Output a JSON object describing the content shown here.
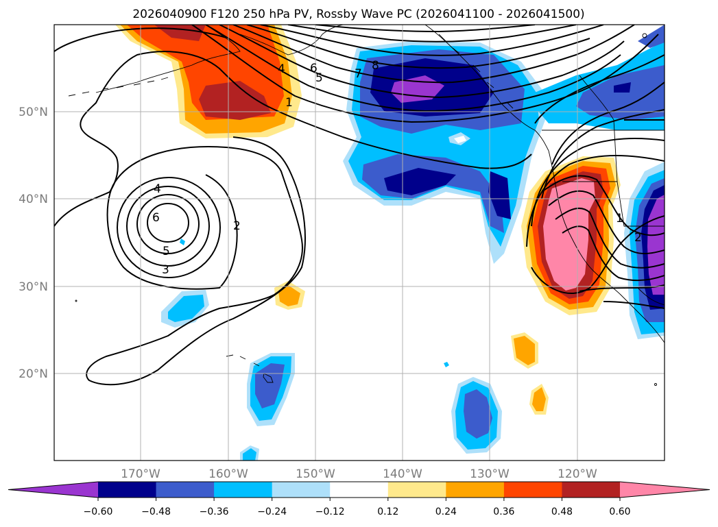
{
  "title": "2026040900 F120 250 hPa PV, Rossby Wave PC (2026041100 - 2026041500)",
  "map": {
    "lon_labels": [
      "170°W",
      "160°W",
      "150°W",
      "140°W",
      "130°W",
      "120°W"
    ],
    "lat_labels": [
      "50°N",
      "40°N",
      "30°N",
      "20°N"
    ]
  },
  "colorbar": {
    "ticks": [
      "−0.60",
      "−0.48",
      "−0.36",
      "−0.24",
      "−0.12",
      "0.12",
      "0.24",
      "0.36",
      "0.48",
      "0.60"
    ],
    "colors": [
      "#9a35d0",
      "#00008b",
      "#3c5ccc",
      "#00bfff",
      "#aee0fa",
      "#ffffff",
      "#ffe98c",
      "#ffa500",
      "#ff4500",
      "#b22222",
      "#ff86a8"
    ]
  },
  "contour_labels": [
    "4",
    "6",
    "5",
    "7",
    "8",
    "1",
    "4",
    "6",
    "5",
    "3",
    "2",
    "1",
    "2"
  ],
  "colors": {
    "pink": "#ff86a8",
    "brick": "#b22222",
    "red_orange": "#ff4500",
    "orange": "#ffa500",
    "yellow": "#ffe98c",
    "light_blue": "#aee0fa",
    "sky_blue": "#00bfff",
    "royal_blue": "#3c5ccc",
    "navy": "#00008b",
    "purple": "#9a35d0"
  }
}
